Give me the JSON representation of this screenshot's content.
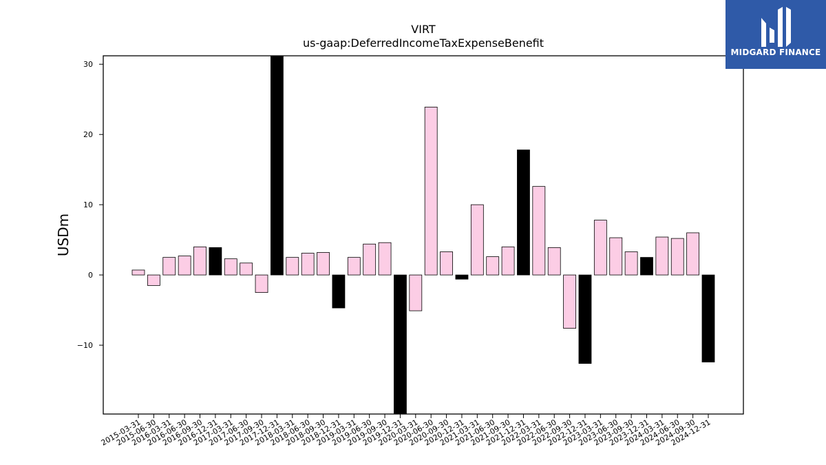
{
  "chart_data": {
    "type": "bar",
    "title": "VIRT",
    "subtitle": "us-gaap:DeferredIncomeTaxExpenseBenefit",
    "xlabel": "",
    "ylabel": "USDm",
    "ylim": [
      -19.8,
      31.2
    ],
    "yticks": [
      -10,
      0,
      10,
      20,
      30
    ],
    "grid": false,
    "colors": {
      "quarterly": "#fccde5",
      "annual": "#000000",
      "edge": "#000000"
    },
    "categories": [
      "2015-03-31",
      "2015-06-30",
      "2016-03-31",
      "2016-06-30",
      "2016-09-30",
      "2016-12-31",
      "2017-03-31",
      "2017-06-30",
      "2017-09-30",
      "2017-12-31",
      "2018-03-31",
      "2018-06-30",
      "2018-09-30",
      "2018-12-31",
      "2019-03-31",
      "2019-06-30",
      "2019-09-30",
      "2019-12-31",
      "2020-03-31",
      "2020-06-30",
      "2020-09-30",
      "2020-12-31",
      "2021-03-31",
      "2021-06-30",
      "2021-09-30",
      "2021-12-31",
      "2022-03-31",
      "2022-06-30",
      "2022-09-30",
      "2022-12-31",
      "2023-03-31",
      "2023-06-30",
      "2023-09-30",
      "2023-12-31",
      "2024-03-31",
      "2024-06-30",
      "2024-09-30",
      "2024-12-31"
    ],
    "values": [
      0.7,
      -1.5,
      2.5,
      2.7,
      4.0,
      3.9,
      2.3,
      1.7,
      -2.5,
      31.2,
      2.5,
      3.1,
      3.2,
      -4.7,
      2.5,
      4.4,
      4.6,
      -19.8,
      -5.1,
      23.9,
      3.3,
      -0.6,
      10.0,
      2.6,
      4.0,
      17.8,
      12.6,
      3.9,
      -7.6,
      -12.6,
      7.8,
      5.3,
      3.3,
      2.5,
      5.4,
      5.2,
      6.0,
      -12.4
    ],
    "annual": [
      false,
      false,
      false,
      false,
      false,
      true,
      false,
      false,
      false,
      true,
      false,
      false,
      false,
      true,
      false,
      false,
      false,
      true,
      false,
      false,
      false,
      true,
      false,
      false,
      false,
      true,
      false,
      false,
      false,
      true,
      false,
      false,
      false,
      true,
      false,
      false,
      false,
      true
    ]
  },
  "logo": {
    "text": "MIDGARD FINANCE",
    "icon": "midgard-logo-icon"
  }
}
